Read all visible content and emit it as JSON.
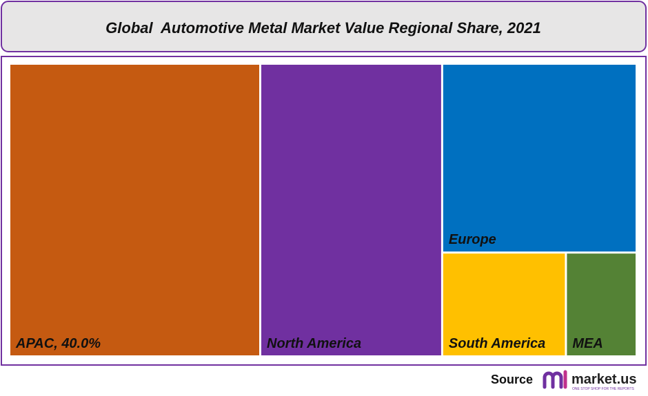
{
  "chart_data": {
    "type": "treemap",
    "title": "Global  Automotive Metal Market Value Regional Share, 2021",
    "categories": [
      "APAC",
      "North America",
      "Europe",
      "South America",
      "MEA"
    ],
    "values": [
      40,
      29,
      20,
      7,
      4
    ],
    "value_labels": [
      "40.0%",
      null,
      null,
      null,
      null
    ],
    "colors": [
      "#c55a11",
      "#7030a0",
      "#0070c0",
      "#ffc000",
      "#548235"
    ]
  },
  "source": {
    "label": "Source",
    "brand": "market.us",
    "tagline": "ONE STOP SHOP FOR THE REPORTS"
  }
}
